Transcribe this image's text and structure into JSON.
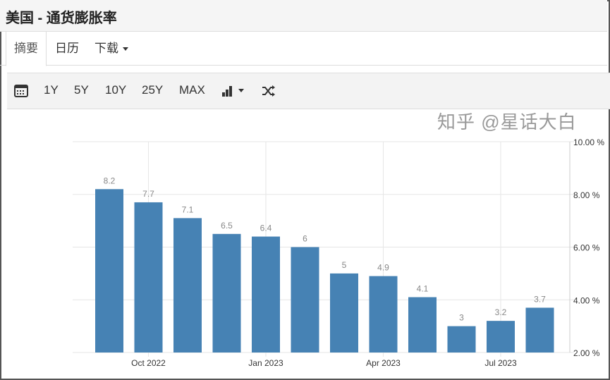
{
  "header": {
    "title": "美国 - 通货膨胀率"
  },
  "tabs": [
    {
      "label": "摘要",
      "active": true
    },
    {
      "label": "日历"
    },
    {
      "label": "下载",
      "icon": "caret-down-icon"
    }
  ],
  "toolbar": {
    "icons": [
      "calendar-icon",
      "bar-chart-icon",
      "caret-down-icon",
      "shuffle-icon"
    ],
    "ranges": [
      "1Y",
      "5Y",
      "10Y",
      "25Y",
      "MAX"
    ]
  },
  "watermark": "知乎 @星话大白",
  "chart_data": {
    "type": "bar",
    "values": [
      8.2,
      7.7,
      7.1,
      6.5,
      6.4,
      6,
      5,
      4.9,
      4.1,
      3,
      3.2,
      3.7
    ],
    "data_labels": [
      "8.2",
      "7.7",
      "7.1",
      "6.5",
      "6.4",
      "6",
      "5",
      "4.9",
      "4.1",
      "3",
      "3.2",
      "3.7"
    ],
    "x_tick_labels": [
      "Oct 2022",
      "Jan 2023",
      "Apr 2023",
      "Jul 2023"
    ],
    "x_tick_bar_index": [
      1,
      4,
      7,
      10
    ],
    "y_tick_labels": [
      "2.00 %",
      "4.00 %",
      "6.00 %",
      "8.00 %",
      "10.00 %"
    ],
    "y_ticks": [
      2,
      4,
      6,
      8,
      10
    ],
    "ylim": [
      2,
      10
    ],
    "y_axis_position": "right",
    "grid": true,
    "bar_color": "#4682b4",
    "label_color": "#888888"
  }
}
